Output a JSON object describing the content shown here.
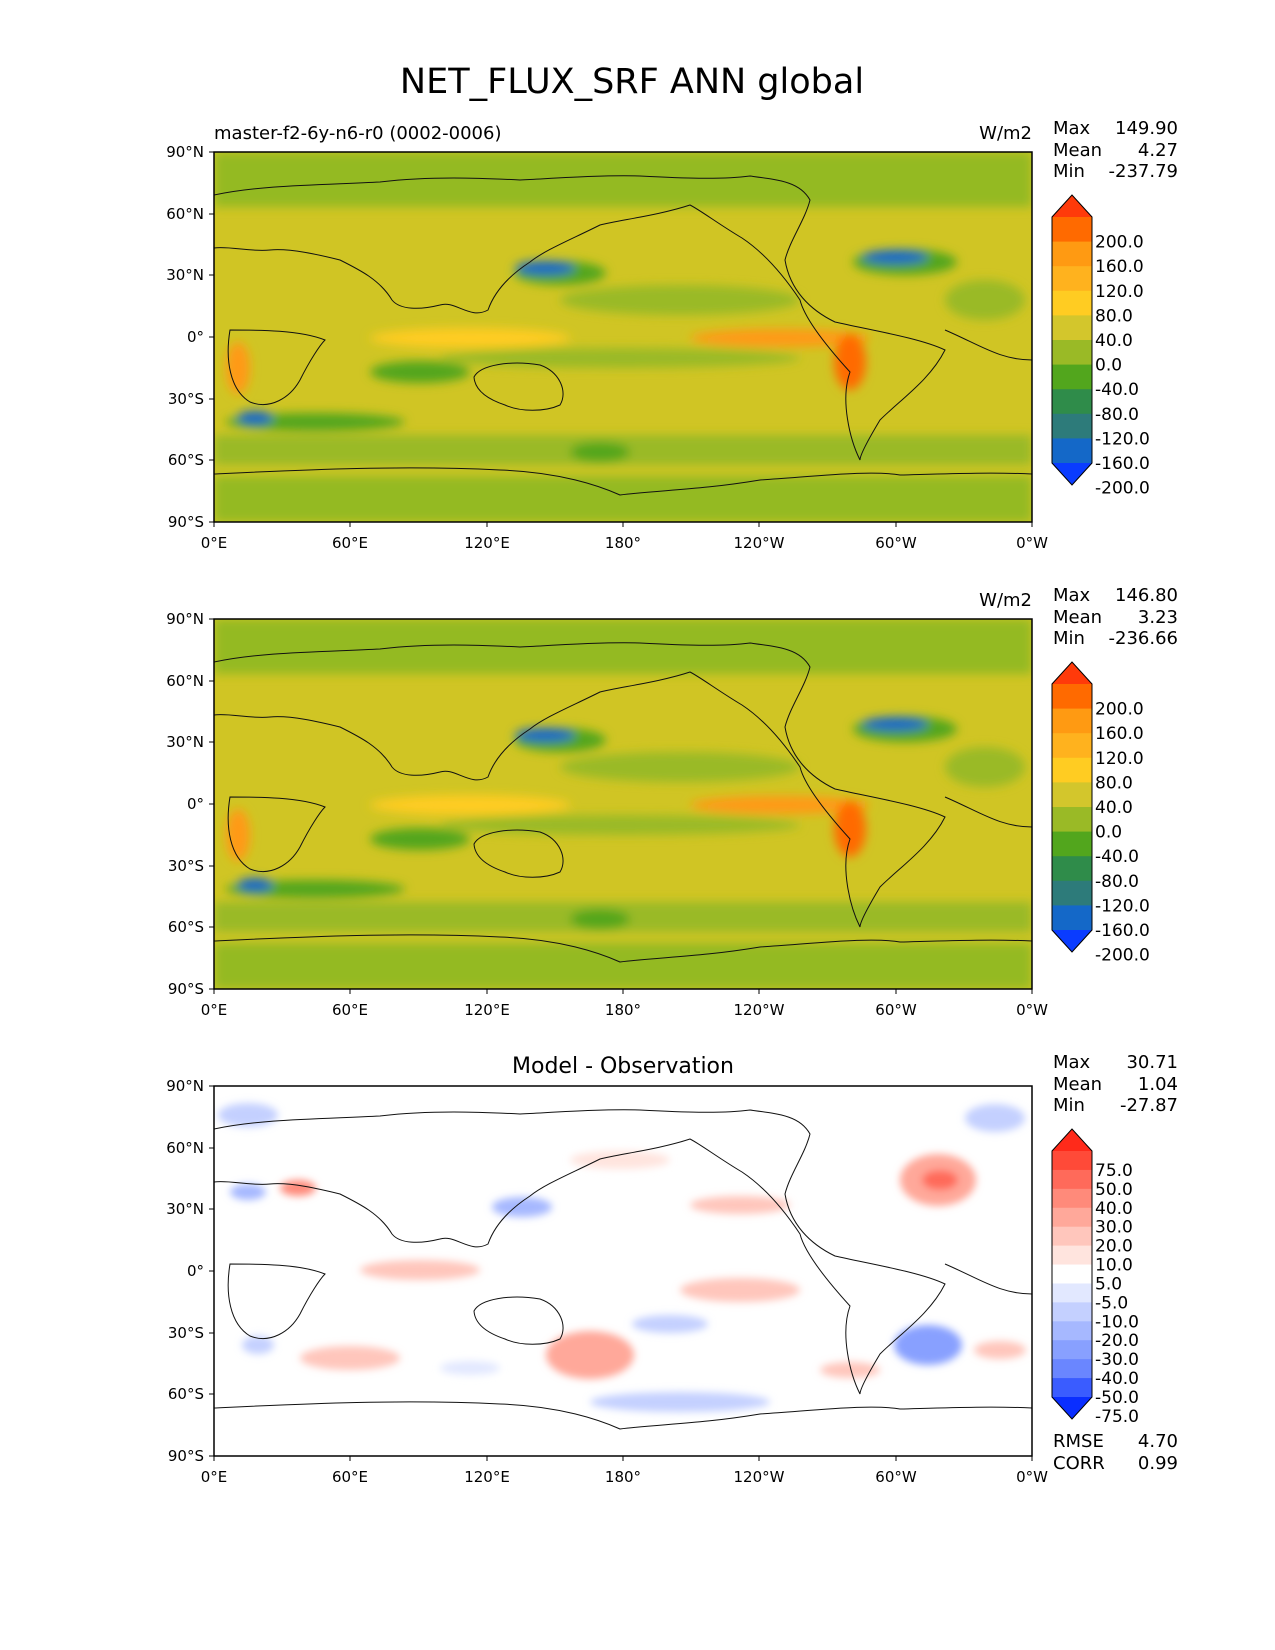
{
  "title": "NET_FLUX_SRF ANN global",
  "chart_data": [
    {
      "type": "heatmap",
      "subtitle_left": "master-f2-6y-n6-r0 (0002-0006)",
      "title": "",
      "units": "W/m2",
      "stats": {
        "labels": [
          "Max",
          "Mean",
          "Min"
        ],
        "values": [
          "149.90",
          "4.27",
          "-237.79"
        ]
      },
      "xticks": [
        "0°E",
        "60°E",
        "120°E",
        "180°",
        "120°W",
        "60°W",
        "0°W"
      ],
      "yticks": [
        "90°N",
        "60°N",
        "30°N",
        "0°",
        "30°S",
        "60°S",
        "90°S"
      ],
      "xlim": [
        0,
        360
      ],
      "ylim": [
        -90,
        90
      ],
      "colorbar": {
        "labels": [
          "200.0",
          "160.0",
          "120.0",
          "80.0",
          "40.0",
          "0.0",
          "-40.0",
          "-80.0",
          "-120.0",
          "-160.0",
          "-200.0"
        ],
        "colors": [
          "#ff3a0a",
          "#ff6a00",
          "#ff9a12",
          "#ffb21e",
          "#ffcc22",
          "#d3c62c",
          "#9aba26",
          "#52a61d",
          "#2f8c4a",
          "#2d7b7a",
          "#1468c8",
          "#0a3cff"
        ]
      },
      "extras": null
    },
    {
      "type": "heatmap",
      "subtitle_left": "",
      "title": "",
      "units": "W/m2",
      "stats": {
        "labels": [
          "Max",
          "Mean",
          "Min"
        ],
        "values": [
          "146.80",
          "3.23",
          "-236.66"
        ]
      },
      "xticks": [
        "0°E",
        "60°E",
        "120°E",
        "180°",
        "120°W",
        "60°W",
        "0°W"
      ],
      "yticks": [
        "90°N",
        "60°N",
        "30°N",
        "0°",
        "30°S",
        "60°S",
        "90°S"
      ],
      "xlim": [
        0,
        360
      ],
      "ylim": [
        -90,
        90
      ],
      "colorbar": {
        "labels": [
          "200.0",
          "160.0",
          "120.0",
          "80.0",
          "40.0",
          "0.0",
          "-40.0",
          "-80.0",
          "-120.0",
          "-160.0",
          "-200.0"
        ],
        "colors": [
          "#ff3a0a",
          "#ff6a00",
          "#ff9a12",
          "#ffb21e",
          "#ffcc22",
          "#d3c62c",
          "#9aba26",
          "#52a61d",
          "#2f8c4a",
          "#2d7b7a",
          "#1468c8",
          "#0a3cff"
        ]
      },
      "extras": null
    },
    {
      "type": "heatmap",
      "subtitle_left": "",
      "title": "Model - Observation",
      "units": "",
      "stats": {
        "labels": [
          "Max",
          "Mean",
          "Min"
        ],
        "values": [
          "30.71",
          "1.04",
          "-27.87"
        ]
      },
      "xticks": [
        "0°E",
        "60°E",
        "120°E",
        "180°",
        "120°W",
        "60°W",
        "0°W"
      ],
      "yticks": [
        "90°N",
        "60°N",
        "30°N",
        "0°",
        "30°S",
        "60°S",
        "90°S"
      ],
      "xlim": [
        0,
        360
      ],
      "ylim": [
        -90,
        90
      ],
      "colorbar": {
        "labels": [
          "75.0",
          "50.0",
          "40.0",
          "30.0",
          "20.0",
          "10.0",
          "5.0",
          "-5.0",
          "-10.0",
          "-20.0",
          "-30.0",
          "-40.0",
          "-50.0",
          "-75.0"
        ],
        "colors": [
          "#ff2a1a",
          "#ff4a38",
          "#ff6a5a",
          "#ff8a7a",
          "#ffa89a",
          "#ffc6bc",
          "#ffe4de",
          "#ffffff",
          "#e2e8ff",
          "#c4d0ff",
          "#a6b8ff",
          "#88a0ff",
          "#6a86ff",
          "#3a5cff",
          "#0a2eff"
        ]
      },
      "extras": {
        "labels": [
          "RMSE",
          "CORR"
        ],
        "values": [
          "4.70",
          "0.99"
        ]
      }
    }
  ]
}
